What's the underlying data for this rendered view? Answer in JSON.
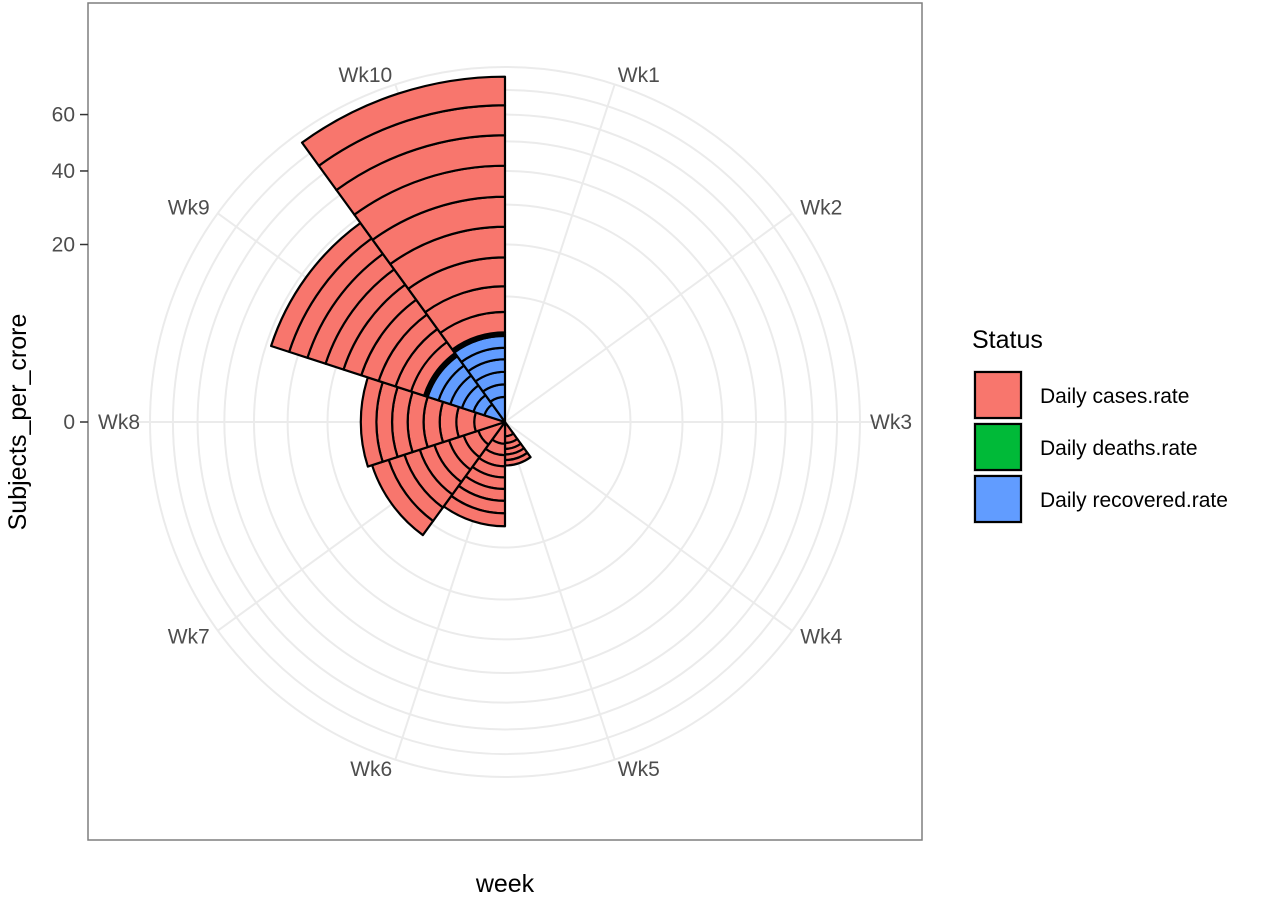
{
  "chart_data": {
    "type": "bar",
    "coord": "polar",
    "position": "stack",
    "title": "",
    "xlabel": "week",
    "ylabel": "Subjects_per_crore",
    "categories": [
      "Wk1",
      "Wk2",
      "Wk3",
      "Wk4",
      "Wk5",
      "Wk6",
      "Wk7",
      "Wk8",
      "Wk9",
      "Wk10"
    ],
    "y_ticks": [
      0,
      20,
      40,
      60
    ],
    "ylim": [
      0,
      80
    ],
    "legend": {
      "title": "Status",
      "position": "right",
      "entries": [
        "Daily cases.rate",
        "Daily deaths.rate",
        "Daily recovered.rate"
      ]
    },
    "colors": {
      "Daily cases.rate": "#F8766D",
      "Daily deaths.rate": "#00BA38",
      "Daily recovered.rate": "#619CFF"
    },
    "weeks": [
      {
        "week": "Wk1",
        "stack": []
      },
      {
        "week": "Wk2",
        "stack": []
      },
      {
        "week": "Wk3",
        "stack": []
      },
      {
        "week": "Wk4",
        "stack": []
      },
      {
        "week": "Wk5",
        "stack": [
          {
            "status": "Daily cases.rate",
            "value": 0.13
          },
          {
            "status": "Daily cases.rate",
            "value": 0.15
          },
          {
            "status": "Daily cases.rate",
            "value": 0.18
          },
          {
            "status": "Daily cases.rate",
            "value": 0.21
          },
          {
            "status": "Daily cases.rate",
            "value": 0.25
          },
          {
            "status": "Daily cases.rate",
            "value": 0.28
          }
        ]
      },
      {
        "week": "Wk6",
        "stack": [
          {
            "status": "Daily cases.rate",
            "value": 0.3
          },
          {
            "status": "Daily cases.rate",
            "value": 0.4
          },
          {
            "status": "Daily cases.rate",
            "value": 0.55
          },
          {
            "status": "Daily cases.rate",
            "value": 0.7
          },
          {
            "status": "Daily cases.rate",
            "value": 0.9
          },
          {
            "status": "Daily cases.rate",
            "value": 1.1
          },
          {
            "status": "Daily cases.rate",
            "value": 1.35
          },
          {
            "status": "Daily cases.rate",
            "value": 1.6
          }
        ]
      },
      {
        "week": "Wk7",
        "stack": [
          {
            "status": "Daily cases.rate",
            "value": 0.5
          },
          {
            "status": "Daily cases.rate",
            "value": 0.7
          },
          {
            "status": "Daily cases.rate",
            "value": 1.0
          },
          {
            "status": "Daily cases.rate",
            "value": 1.3
          },
          {
            "status": "Daily cases.rate",
            "value": 1.6
          },
          {
            "status": "Daily cases.rate",
            "value": 2.0
          },
          {
            "status": "Daily cases.rate",
            "value": 2.4
          },
          {
            "status": "Daily cases.rate",
            "value": 2.9
          }
        ]
      },
      {
        "week": "Wk8",
        "stack": [
          {
            "status": "Daily cases.rate",
            "value": 0.6
          },
          {
            "status": "Daily cases.rate",
            "value": 0.9
          },
          {
            "status": "Daily cases.rate",
            "value": 1.2
          },
          {
            "status": "Daily cases.rate",
            "value": 1.5
          },
          {
            "status": "Daily cases.rate",
            "value": 1.8
          },
          {
            "status": "Daily cases.rate",
            "value": 2.1
          },
          {
            "status": "Daily cases.rate",
            "value": 2.4
          },
          {
            "status": "Daily cases.rate",
            "value": 2.7
          }
        ]
      },
      {
        "week": "Wk9",
        "stack": [
          {
            "status": "Daily recovered.rate",
            "value": 0.3
          },
          {
            "status": "Daily recovered.rate",
            "value": 0.4
          },
          {
            "status": "Daily recovered.rate",
            "value": 0.6
          },
          {
            "status": "Daily recovered.rate",
            "value": 0.8
          },
          {
            "status": "Daily recovered.rate",
            "value": 1.0
          },
          {
            "status": "Daily recovered.rate",
            "value": 1.1
          },
          {
            "status": "Daily deaths.rate",
            "value": 0.2
          },
          {
            "status": "Daily deaths.rate",
            "value": 0.2
          },
          {
            "status": "Daily cases.rate",
            "value": 1.6
          },
          {
            "status": "Daily cases.rate",
            "value": 2.2
          },
          {
            "status": "Daily cases.rate",
            "value": 2.8
          },
          {
            "status": "Daily cases.rate",
            "value": 3.3
          },
          {
            "status": "Daily cases.rate",
            "value": 3.8
          },
          {
            "status": "Daily cases.rate",
            "value": 4.3
          },
          {
            "status": "Daily cases.rate",
            "value": 4.8
          },
          {
            "status": "Daily cases.rate",
            "value": 5.3
          },
          {
            "status": "Daily cases.rate",
            "value": 5.7
          }
        ]
      },
      {
        "week": "Wk10",
        "stack": [
          {
            "status": "Daily recovered.rate",
            "value": 0.4
          },
          {
            "status": "Daily recovered.rate",
            "value": 0.5
          },
          {
            "status": "Daily recovered.rate",
            "value": 0.7
          },
          {
            "status": "Daily recovered.rate",
            "value": 0.9
          },
          {
            "status": "Daily recovered.rate",
            "value": 1.0
          },
          {
            "status": "Daily recovered.rate",
            "value": 1.2
          },
          {
            "status": "Daily deaths.rate",
            "value": 0.2
          },
          {
            "status": "Daily deaths.rate",
            "value": 0.2
          },
          {
            "status": "Daily cases.rate",
            "value": 2.6
          },
          {
            "status": "Daily cases.rate",
            "value": 4.0
          },
          {
            "status": "Daily cases.rate",
            "value": 5.5
          },
          {
            "status": "Daily cases.rate",
            "value": 7.0
          },
          {
            "status": "Daily cases.rate",
            "value": 8.0
          },
          {
            "status": "Daily cases.rate",
            "value": 9.5
          },
          {
            "status": "Daily cases.rate",
            "value": 10.5
          },
          {
            "status": "Daily cases.rate",
            "value": 11.5
          },
          {
            "status": "Daily cases.rate",
            "value": 12.0
          }
        ]
      }
    ]
  }
}
